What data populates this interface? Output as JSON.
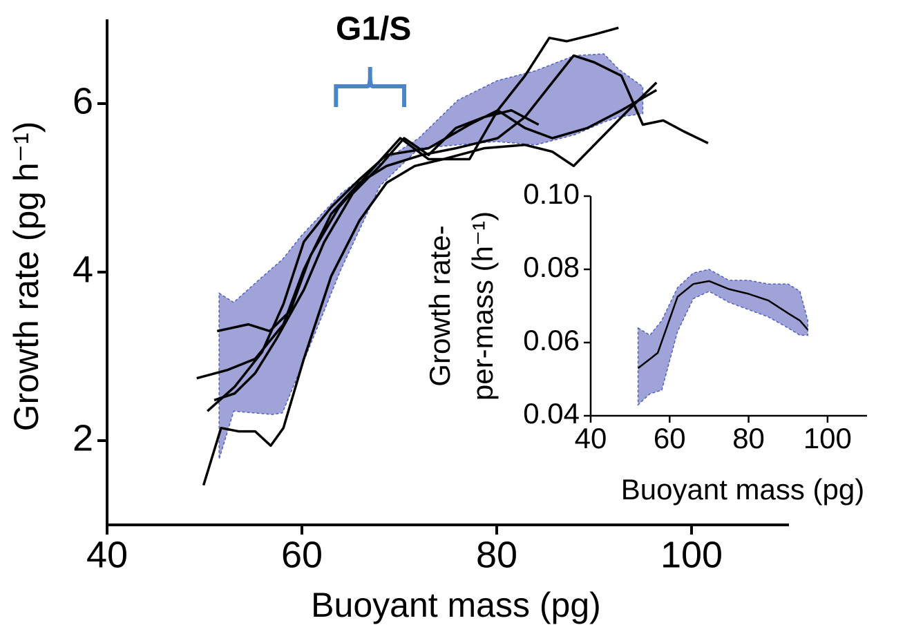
{
  "chart_data": [
    {
      "type": "line",
      "xlabel": "Buoyant mass (pg)",
      "ylabel": "Growth rate (pg h⁻¹)",
      "xlim": [
        40,
        110
      ],
      "ylim": [
        1,
        7
      ],
      "xticks": [
        40,
        60,
        80,
        100
      ],
      "yticks": [
        2,
        4,
        6
      ],
      "annotation": {
        "text": "G1/S",
        "x_range": [
          63.5,
          70.5
        ],
        "color": "#4a86c5"
      },
      "band": {
        "color": "#9fa3d8",
        "edge": "#4f5fc0",
        "x": [
          51.5,
          53,
          56,
          57,
          58,
          60,
          64,
          68,
          72,
          76,
          80,
          84,
          88,
          91,
          92.5,
          95
        ],
        "upper": [
          3.75,
          3.64,
          3.95,
          4.05,
          4.15,
          4.44,
          4.93,
          5.29,
          5.59,
          6.04,
          6.27,
          6.39,
          6.57,
          6.59,
          6.41,
          6.2
        ],
        "lower": [
          1.78,
          2.35,
          2.32,
          2.31,
          2.33,
          2.89,
          4.03,
          5.02,
          5.47,
          5.51,
          5.55,
          5.51,
          5.63,
          5.78,
          5.84,
          5.88
        ]
      },
      "series": [
        {
          "color": "#000000",
          "x": [
            49.9,
            51.7,
            53.5,
            55.2,
            56.8,
            58.1,
            60.2,
            63,
            65.9,
            68.7,
            71.6,
            74.5,
            78.7,
            82.9,
            85.7,
            87.9,
            90.7,
            93.5,
            96.4
          ],
          "values": [
            1.47,
            2.15,
            2.11,
            2.11,
            1.94,
            2.15,
            2.97,
            3.95,
            4.61,
            5.06,
            5.26,
            5.34,
            5.47,
            5.51,
            5.43,
            5.26,
            5.59,
            5.92,
            6.25
          ]
        },
        {
          "color": "#000000",
          "x": [
            51.3,
            54.5,
            56.7,
            58.8,
            60.9,
            63.8,
            66.6,
            70.1,
            73,
            77.2,
            80.1,
            82.9,
            85.4,
            87.2,
            90,
            92.5
          ],
          "values": [
            3.3,
            3.38,
            3.3,
            3.54,
            4.2,
            4.77,
            5.14,
            5.59,
            5.34,
            5.34,
            5.92,
            6.33,
            6.78,
            6.74,
            6.82,
            6.9
          ]
        },
        {
          "color": "#000000",
          "x": [
            49.2,
            52.4,
            55.2,
            58.1,
            60.2,
            63,
            65.9,
            68.7,
            72.3,
            75.8,
            80.1,
            82.9,
            85.7,
            87.9,
            90,
            92.8,
            95,
            97.1,
            99.2,
            101.7
          ],
          "values": [
            2.74,
            2.84,
            2.97,
            3.38,
            4.03,
            4.69,
            5.06,
            5.26,
            5.39,
            5.47,
            5.59,
            5.84,
            6.25,
            6.57,
            6.49,
            6.33,
            5.75,
            5.8,
            5.67,
            5.53
          ]
        },
        {
          "color": "#000000",
          "x": [
            50.3,
            53.1,
            55.9,
            58.1,
            60.2,
            63,
            65.9,
            68.7,
            73,
            77.2,
            80.1,
            82.9,
            85.7,
            89.3,
            92.8,
            96.4
          ],
          "values": [
            2.35,
            2.64,
            3.05,
            3.62,
            4.36,
            4.77,
            5.1,
            5.39,
            5.47,
            5.75,
            5.92,
            5.71,
            5.59,
            5.71,
            5.92,
            6.16
          ]
        },
        {
          "color": "#000000",
          "x": [
            51,
            53.1,
            55.2,
            57.4,
            60.2,
            62.3,
            65.2,
            68,
            70.5,
            73,
            75.8,
            78.7,
            81.5,
            84.3
          ],
          "values": [
            2.48,
            2.56,
            2.8,
            3.21,
            3.79,
            4.36,
            4.93,
            5.26,
            5.59,
            5.39,
            5.71,
            5.84,
            5.92,
            5.75
          ]
        }
      ]
    },
    {
      "type": "line",
      "xlabel": "Buoyant mass (pg)",
      "ylabel": [
        "Growth rate-",
        "per-mass (h⁻¹)"
      ],
      "xlim": [
        40,
        110
      ],
      "ylim": [
        0.04,
        0.1
      ],
      "xticks": [
        40,
        60,
        80,
        100
      ],
      "yticks": [
        0.04,
        0.06,
        0.08,
        {
          "value": 0.1,
          "label": "0.10"
        }
      ],
      "band": {
        "color": "#9fa3d8",
        "edge": "#4f5fc0",
        "x": [
          52,
          55,
          58,
          62,
          66,
          70,
          75,
          80,
          85,
          90,
          93,
          95
        ],
        "upper": [
          0.064,
          0.062,
          0.066,
          0.075,
          0.079,
          0.08,
          0.077,
          0.077,
          0.076,
          0.076,
          0.074,
          0.066
        ],
        "lower": [
          0.043,
          0.046,
          0.047,
          0.063,
          0.072,
          0.074,
          0.071,
          0.069,
          0.067,
          0.064,
          0.062,
          0.062
        ]
      },
      "series": [
        {
          "color": "#000000",
          "x": [
            52,
            55,
            57,
            62,
            66,
            70,
            75,
            80,
            85,
            90,
            93,
            95
          ],
          "values": [
            0.053,
            0.0555,
            0.0572,
            0.0725,
            0.076,
            0.0768,
            0.0746,
            0.0733,
            0.0715,
            0.068,
            0.066,
            0.0635
          ]
        }
      ]
    }
  ]
}
